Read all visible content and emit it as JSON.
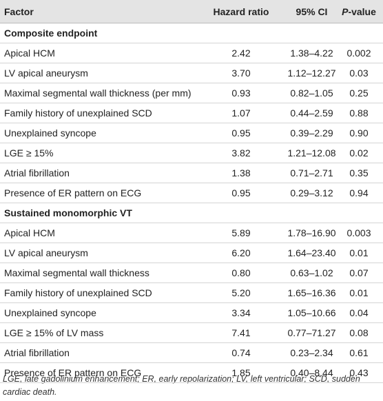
{
  "table": {
    "headers": [
      "Factor",
      "Hazard ratio",
      "95% CI",
      {
        "italic": "P",
        "rest": "-value"
      }
    ],
    "sections": [
      {
        "title": "Composite endpoint",
        "rows": [
          [
            "Apical HCM",
            "2.42",
            "1.38–4.22",
            "0.002"
          ],
          [
            "LV apical aneurysm",
            "3.70",
            "1.12–12.27",
            "0.03"
          ],
          [
            "Maximal segmental wall thickness (per mm)",
            "0.93",
            "0.82–1.05",
            "0.25"
          ],
          [
            "Family history of unexplained SCD",
            "1.07",
            "0.44–2.59",
            "0.88"
          ],
          [
            "Unexplained syncope",
            "0.95",
            "0.39–2.29",
            "0.90"
          ],
          [
            "LGE ≥ 15%",
            "3.82",
            "1.21–12.08",
            "0.02"
          ],
          [
            "Atrial fibrillation",
            "1.38",
            "0.71–2.71",
            "0.35"
          ],
          [
            "Presence of ER pattern on ECG",
            "0.95",
            "0.29–3.12",
            "0.94"
          ]
        ]
      },
      {
        "title": "Sustained monomorphic VT",
        "rows": [
          [
            "Apical HCM",
            "5.89",
            "1.78–16.90",
            "0.003"
          ],
          [
            "LV apical aneurysm",
            "6.20",
            "1.64–23.40",
            "0.01"
          ],
          [
            "Maximal segmental wall thickness",
            "0.80",
            "0.63–1.02",
            "0.07"
          ],
          [
            "Family history of unexplained SCD",
            "5.20",
            "1.65–16.36",
            "0.01"
          ],
          [
            "Unexplained syncope",
            "3.34",
            "1.05–10.66",
            "0.04"
          ],
          [
            "LGE ≥ 15% of LV mass",
            "7.41",
            "0.77–71.27",
            "0.08"
          ],
          [
            "Atrial fibrillation",
            "0.74",
            "0.23–2.34",
            "0.61"
          ],
          [
            "Presence of ER pattern on ECG",
            "1.85",
            "0.40–8.44",
            "0.43"
          ]
        ]
      }
    ],
    "footnote": "LGE, late gadolinium enhancement; ER, early repolarization; LV, left ventricular; SCD, sudden cardiac death."
  }
}
